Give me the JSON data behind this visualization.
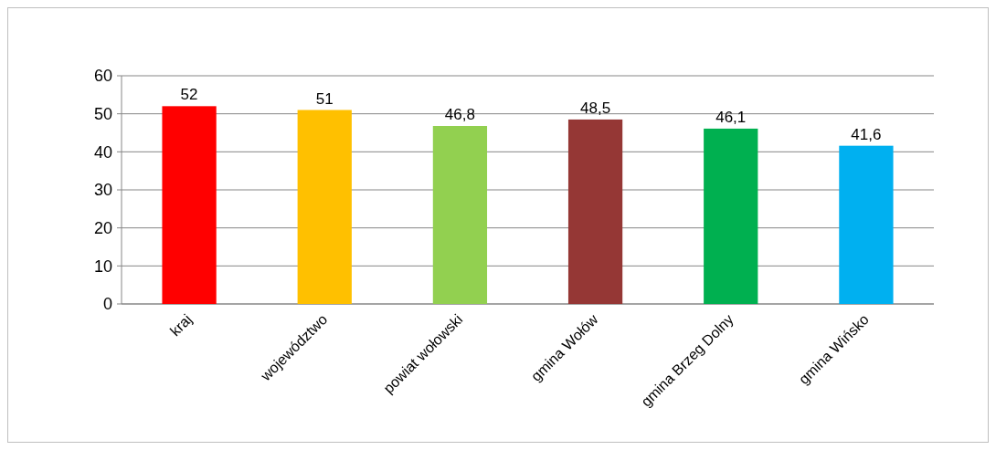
{
  "chart_data": {
    "type": "bar",
    "categories": [
      "kraj",
      "województwo",
      "powiat wołowski",
      "gmina Wołów",
      "gmina Brzeg Dolny",
      "gmina Wińsko"
    ],
    "values": [
      52,
      51,
      46.8,
      48.5,
      46.1,
      41.6
    ],
    "colors": [
      "#ff0000",
      "#ffc000",
      "#92d050",
      "#953735",
      "#00b050",
      "#00b0f0"
    ],
    "ylim": [
      0,
      60
    ],
    "yticks": [
      0,
      10,
      20,
      30,
      40,
      50,
      60
    ],
    "value_labels": [
      "52",
      "51",
      "46,8",
      "48,5",
      "46,1",
      "41,6"
    ],
    "grid": "y"
  }
}
